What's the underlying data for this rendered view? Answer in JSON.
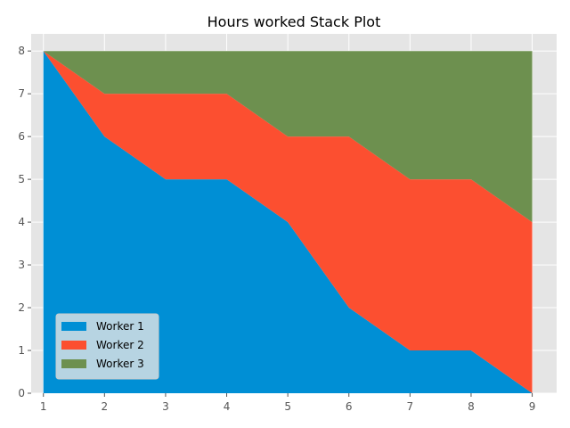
{
  "chart_data": {
    "type": "area",
    "stacked": true,
    "title": "Hours worked Stack Plot",
    "xlabel": "",
    "ylabel": "",
    "x": [
      1,
      2,
      3,
      4,
      5,
      6,
      7,
      8,
      9
    ],
    "xlim": [
      0.8,
      9.4
    ],
    "ylim": [
      0,
      8.4
    ],
    "xticks": [
      1,
      2,
      3,
      4,
      5,
      6,
      7,
      8,
      9
    ],
    "yticks": [
      0,
      1,
      2,
      3,
      4,
      5,
      6,
      7,
      8
    ],
    "grid": true,
    "legend_position": "lower-left",
    "series": [
      {
        "name": "Worker 1",
        "color": "#008fd5",
        "values": [
          8,
          6,
          5,
          5,
          4,
          2,
          1,
          1,
          0
        ]
      },
      {
        "name": "Worker 2",
        "color": "#fc4f30",
        "values": [
          0,
          1,
          2,
          2,
          2,
          4,
          4,
          4,
          4
        ]
      },
      {
        "name": "Worker 3",
        "color": "#6d904f",
        "values": [
          0,
          1,
          1,
          1,
          2,
          2,
          3,
          3,
          4
        ]
      }
    ]
  }
}
